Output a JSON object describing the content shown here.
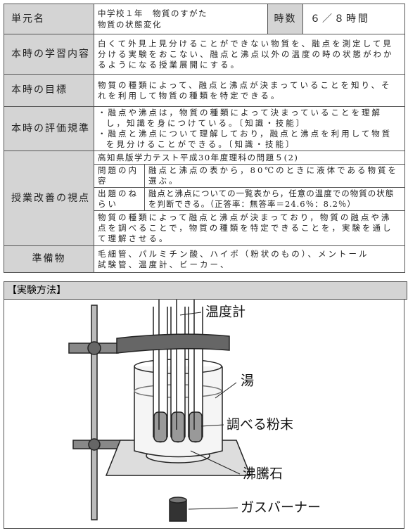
{
  "unit": {
    "label": "単元名",
    "lines": [
      "中学校１年　物質のすがた",
      "物質の状態変化"
    ],
    "hours_label": "時数",
    "hours": "６／８時間"
  },
  "content": {
    "label": "本時の学習内容",
    "text": "白くて外見上見分けることができない物質を、融点を測定して見分ける実験をおこない、融点と沸点以外の温度の時の状態がわかるようになる授業展開にする。"
  },
  "goal": {
    "label": "本時の目標",
    "text": "物質の種類によって、融点と沸点が決まっていることを知り、それを利用して物質の種類を特定できる。"
  },
  "criteria": {
    "label": "本時の評価規準",
    "items": [
      "・融点や沸点は，物質の種類によって決まっていることを理解し，知識を身につけている。〔知識・技能〕",
      "・融点と沸点について理解しており，融点と沸点を利用して物質を見分けることができる。〔知識・技能〕"
    ]
  },
  "improvement": {
    "label": "授業改善の視点",
    "source": "高知県版学力テスト平成30年度理科の問題５(2)",
    "rows": [
      {
        "label": "問題の内容",
        "text": "融点と沸点の表から，80℃のときに液体である物質を選ぶ。"
      },
      {
        "label": "出題のねらい",
        "text": "融点と沸点についての一覧表から，任意の温度での物質の状態を判断できる。（正答率：無答率＝24.6％：8.2％）"
      }
    ],
    "summary": "物質の種類によって融点と沸点が決まっており，物質の融点や沸点を調べることで，物質の種類を特定できることを，実験を通して理解させる。"
  },
  "materials": {
    "label": "準備物",
    "lines": [
      "毛細管、パルミチン酸、ハイポ（粉状のもの）、メントール",
      "試験管、温度計、ビーカー、"
    ]
  },
  "method": {
    "title": "【実験方法】",
    "labels": {
      "thermometer": "温度計",
      "water": "湯",
      "powder": "調べる粉末",
      "stone": "沸騰石",
      "burner": "ガスバーナー"
    }
  }
}
